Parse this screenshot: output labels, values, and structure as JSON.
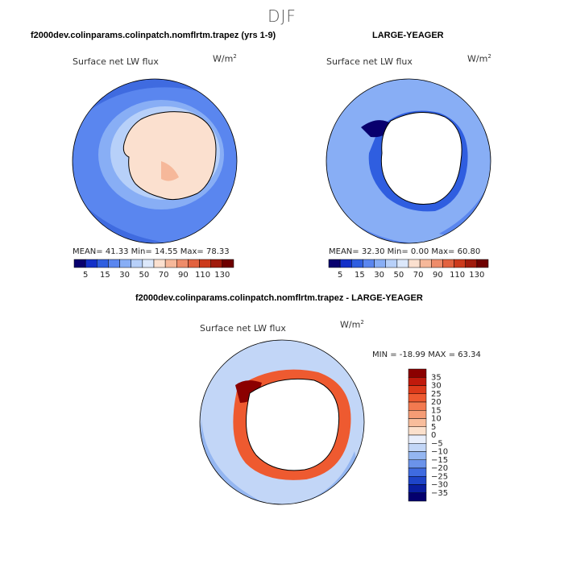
{
  "title": "DJF",
  "panels": [
    {
      "header": "f2000dev.colinparams.colinpatch.nomflrtm.trapez (yrs 1-9)",
      "variable": "Surface net LW flux",
      "units": "W/m",
      "units_sup": "2",
      "stats": "MEAN=  41.33   Min=  14.55   Max=  78.33"
    },
    {
      "header": "LARGE-YEAGER",
      "variable": "Surface net LW flux",
      "units": "W/m",
      "units_sup": "2",
      "stats": "MEAN=  32.30   Min=   0.00   Max=  60.80"
    },
    {
      "header": "f2000dev.colinparams.colinpatch.nomflrtm.trapez - LARGE-YEAGER",
      "variable": "Surface net LW flux",
      "units": "W/m",
      "units_sup": "2",
      "stats": "MIN = -18.99  MAX =  63.34"
    }
  ],
  "chart_data": [
    {
      "type": "heatmap",
      "projection": "south polar stereographic",
      "title": "f2000dev.colinparams.colinpatch.nomflrtm.trapez (yrs 1-9)",
      "variable": "Surface net LW flux",
      "units": "W/m2",
      "stats": {
        "mean": 41.33,
        "min": 14.55,
        "max": 78.33
      },
      "colorbar": {
        "orientation": "horizontal",
        "levels": [
          5,
          15,
          30,
          50,
          70,
          90,
          110,
          130
        ],
        "colors": [
          "#08006e",
          "#1330c8",
          "#2f5ee0",
          "#5a86ef",
          "#88aef5",
          "#b7d0f9",
          "#dce8fb",
          "#fbe0cf",
          "#f6b89a",
          "#ee8c6a",
          "#e2623f",
          "#cc3a1c",
          "#a01b0c",
          "#6e0000"
        ]
      }
    },
    {
      "type": "heatmap",
      "projection": "south polar stereographic",
      "title": "LARGE-YEAGER",
      "variable": "Surface net LW flux",
      "units": "W/m2",
      "stats": {
        "mean": 32.3,
        "min": 0.0,
        "max": 60.8
      },
      "colorbar": {
        "orientation": "horizontal",
        "levels": [
          5,
          15,
          30,
          50,
          70,
          90,
          110,
          130
        ],
        "colors": [
          "#08006e",
          "#1330c8",
          "#2f5ee0",
          "#5a86ef",
          "#88aef5",
          "#b7d0f9",
          "#dce8fb",
          "#fbe0cf",
          "#f6b89a",
          "#ee8c6a",
          "#e2623f",
          "#cc3a1c",
          "#a01b0c",
          "#6e0000"
        ]
      }
    },
    {
      "type": "heatmap",
      "projection": "south polar stereographic",
      "title": "f2000dev.colinparams.colinpatch.nomflrtm.trapez - LARGE-YEAGER",
      "variable": "Surface net LW flux",
      "units": "W/m2",
      "stats": {
        "min": -18.99,
        "max": 63.34
      },
      "colorbar": {
        "orientation": "vertical",
        "levels": [
          35,
          30,
          25,
          20,
          15,
          10,
          5,
          0,
          -5,
          -10,
          -15,
          -20,
          -25,
          -30,
          -35
        ],
        "colors": [
          "#8b0000",
          "#c01a0c",
          "#dd3a1a",
          "#ee5a30",
          "#f37a50",
          "#f59c75",
          "#f8bd9c",
          "#fbe0cc",
          "#e8eefb",
          "#c2d6f7",
          "#94b6f1",
          "#6b93ea",
          "#3f6be0",
          "#1e44c8",
          "#0a1ea0",
          "#04006e"
        ]
      }
    }
  ]
}
